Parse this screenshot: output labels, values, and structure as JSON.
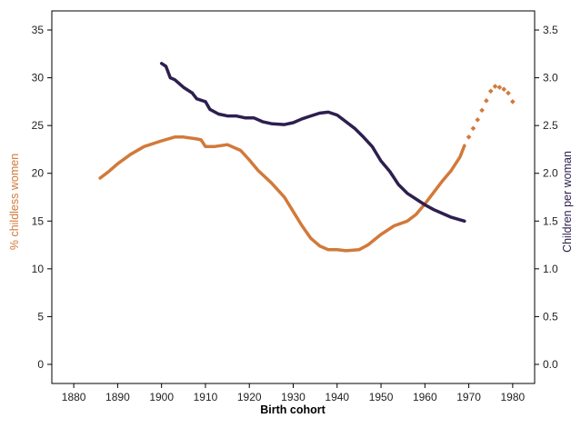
{
  "chart_data": {
    "type": "line",
    "title": "",
    "xlabel": "Birth cohort",
    "ylabel_left": "% childless women",
    "ylabel_right": "Children per woman",
    "xlim": [
      1875,
      1985
    ],
    "ylim_left": [
      -2,
      37
    ],
    "ylim_right": [
      -0.2,
      3.7
    ],
    "x_ticks": [
      1880,
      1890,
      1900,
      1910,
      1920,
      1930,
      1940,
      1950,
      1960,
      1970,
      1980
    ],
    "y_left_ticks": [
      0,
      5,
      10,
      15,
      20,
      25,
      30,
      35
    ],
    "y_right_ticks": [
      "0.0",
      "0.5",
      "1.0",
      "1.5",
      "2.0",
      "2.5",
      "3.0",
      "3.5"
    ],
    "grid": false,
    "colors": {
      "childless": "#d2793a",
      "fertility": "#2d1f4e",
      "axis": "#000000"
    },
    "series": [
      {
        "name": "% childless women",
        "axis": "left",
        "style": "solid",
        "points": [
          [
            1886,
            19.5
          ],
          [
            1888,
            20.2
          ],
          [
            1890,
            21.0
          ],
          [
            1893,
            22.0
          ],
          [
            1896,
            22.8
          ],
          [
            1900,
            23.4
          ],
          [
            1903,
            23.8
          ],
          [
            1905,
            23.8
          ],
          [
            1908,
            23.6
          ],
          [
            1909,
            23.5
          ],
          [
            1910,
            22.8
          ],
          [
            1912,
            22.8
          ],
          [
            1915,
            23.0
          ],
          [
            1918,
            22.4
          ],
          [
            1920,
            21.4
          ],
          [
            1922,
            20.3
          ],
          [
            1925,
            19.0
          ],
          [
            1928,
            17.5
          ],
          [
            1930,
            16.0
          ],
          [
            1932,
            14.5
          ],
          [
            1934,
            13.2
          ],
          [
            1936,
            12.4
          ],
          [
            1938,
            12.0
          ],
          [
            1940,
            12.0
          ],
          [
            1942,
            11.9
          ],
          [
            1945,
            12.0
          ],
          [
            1947,
            12.5
          ],
          [
            1950,
            13.6
          ],
          [
            1953,
            14.5
          ],
          [
            1956,
            15.0
          ],
          [
            1958,
            15.7
          ],
          [
            1960,
            16.8
          ],
          [
            1962,
            18.0
          ],
          [
            1964,
            19.2
          ],
          [
            1966,
            20.3
          ],
          [
            1968,
            21.7
          ],
          [
            1969,
            22.9
          ]
        ]
      },
      {
        "name": "% childless women (projected)",
        "axis": "left",
        "style": "dotted",
        "points": [
          [
            1970,
            23.8
          ],
          [
            1971,
            24.7
          ],
          [
            1972,
            25.6
          ],
          [
            1973,
            26.6
          ],
          [
            1974,
            27.6
          ],
          [
            1975,
            28.6
          ],
          [
            1976,
            29.1
          ],
          [
            1977,
            29.0
          ],
          [
            1978,
            28.8
          ],
          [
            1979,
            28.4
          ],
          [
            1980,
            27.5
          ]
        ]
      },
      {
        "name": "Children per woman",
        "axis": "right",
        "style": "solid",
        "points": [
          [
            1900,
            3.15
          ],
          [
            1901,
            3.12
          ],
          [
            1902,
            3.0
          ],
          [
            1903,
            2.98
          ],
          [
            1905,
            2.9
          ],
          [
            1907,
            2.84
          ],
          [
            1908,
            2.78
          ],
          [
            1910,
            2.75
          ],
          [
            1911,
            2.67
          ],
          [
            1913,
            2.62
          ],
          [
            1915,
            2.6
          ],
          [
            1917,
            2.6
          ],
          [
            1919,
            2.58
          ],
          [
            1921,
            2.58
          ],
          [
            1923,
            2.54
          ],
          [
            1925,
            2.52
          ],
          [
            1928,
            2.51
          ],
          [
            1930,
            2.53
          ],
          [
            1932,
            2.57
          ],
          [
            1934,
            2.6
          ],
          [
            1936,
            2.63
          ],
          [
            1938,
            2.64
          ],
          [
            1940,
            2.61
          ],
          [
            1942,
            2.54
          ],
          [
            1944,
            2.47
          ],
          [
            1946,
            2.38
          ],
          [
            1948,
            2.28
          ],
          [
            1950,
            2.13
          ],
          [
            1952,
            2.02
          ],
          [
            1954,
            1.88
          ],
          [
            1956,
            1.79
          ],
          [
            1958,
            1.73
          ],
          [
            1960,
            1.67
          ],
          [
            1962,
            1.62
          ],
          [
            1964,
            1.58
          ],
          [
            1966,
            1.54
          ],
          [
            1969,
            1.5
          ]
        ]
      }
    ]
  }
}
